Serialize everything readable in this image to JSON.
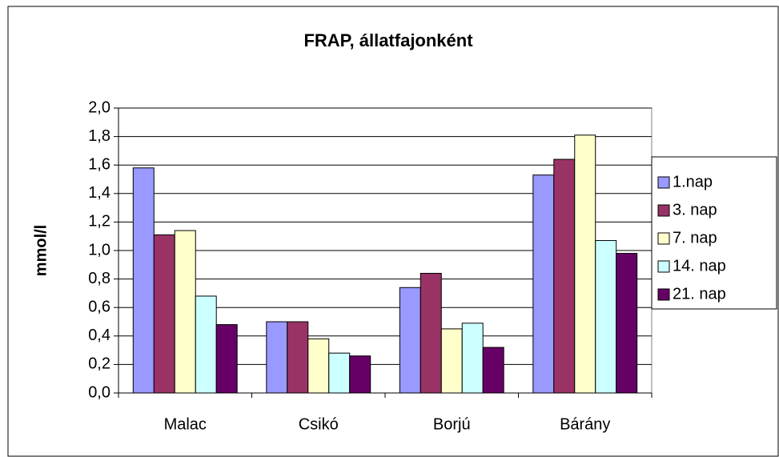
{
  "chart_data": {
    "type": "bar",
    "title": "FRAP, állatfajonként",
    "y_label": "mmol/l",
    "categories": [
      "Malac",
      "Csikó",
      "Borjú",
      "Bárány"
    ],
    "series": [
      {
        "name": "1.nap",
        "color": "#9999ff",
        "values": [
          1.58,
          0.5,
          0.74,
          1.53
        ]
      },
      {
        "name": "3. nap",
        "color": "#993366",
        "values": [
          1.11,
          0.5,
          0.84,
          1.64
        ]
      },
      {
        "name": "7. nap",
        "color": "#ffffcc",
        "values": [
          1.14,
          0.38,
          0.45,
          1.81
        ]
      },
      {
        "name": "14. nap",
        "color": "#ccffff",
        "values": [
          0.68,
          0.28,
          0.49,
          1.07
        ]
      },
      {
        "name": "21. nap",
        "color": "#660066",
        "values": [
          0.48,
          0.26,
          0.32,
          0.98
        ]
      }
    ],
    "ylim": [
      0,
      2
    ],
    "yticks": [
      {
        "value": 0,
        "label": "0,0"
      },
      {
        "value": 0.2,
        "label": "0,2"
      },
      {
        "value": 0.4,
        "label": "0,4"
      },
      {
        "value": 0.6,
        "label": "0,6"
      },
      {
        "value": 0.8,
        "label": "0,8"
      },
      {
        "value": 1.0,
        "label": "1,0"
      },
      {
        "value": 1.2,
        "label": "1,2"
      },
      {
        "value": 1.4,
        "label": "1,4"
      },
      {
        "value": 1.6,
        "label": "1,6"
      },
      {
        "value": 1.8,
        "label": "1,8"
      },
      {
        "value": 2.0,
        "label": "2,0"
      }
    ],
    "grid": true,
    "legend": "right"
  }
}
